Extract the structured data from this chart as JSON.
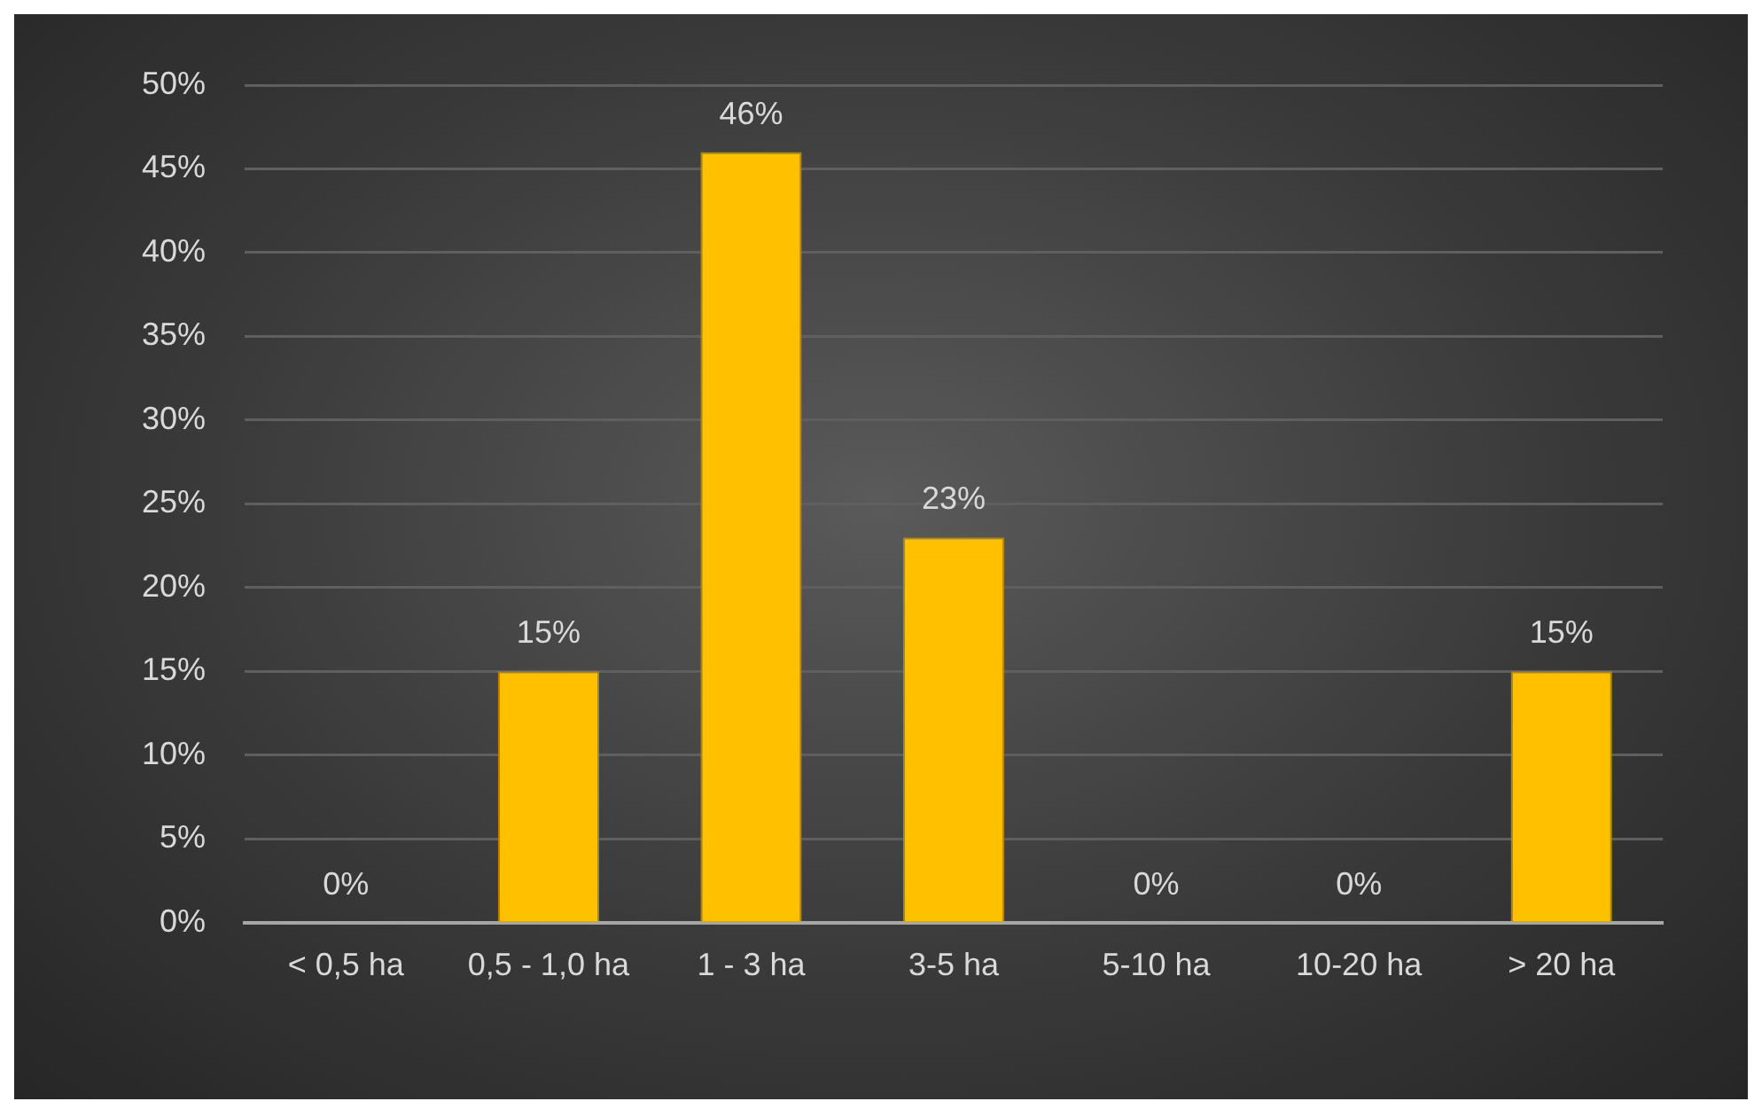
{
  "chart_data": {
    "type": "bar",
    "categories": [
      "< 0,5 ha",
      "0,5 - 1,0 ha",
      "1 - 3 ha",
      "3-5 ha",
      "5-10 ha",
      "10-20 ha",
      "> 20 ha"
    ],
    "values": [
      0,
      15,
      46,
      23,
      0,
      0,
      15
    ],
    "value_labels": [
      "0%",
      "15%",
      "46%",
      "23%",
      "0%",
      "0%",
      "15%"
    ],
    "color": "#ffc000",
    "ylim": [
      0,
      50
    ],
    "yticks": [
      {
        "value": 0,
        "label": "0%"
      },
      {
        "value": 5,
        "label": "5%"
      },
      {
        "value": 10,
        "label": "10%"
      },
      {
        "value": 15,
        "label": "15%"
      },
      {
        "value": 20,
        "label": "20%"
      },
      {
        "value": 25,
        "label": "25%"
      },
      {
        "value": 30,
        "label": "30%"
      },
      {
        "value": 35,
        "label": "35%"
      },
      {
        "value": 40,
        "label": "40%"
      },
      {
        "value": 45,
        "label": "45%"
      },
      {
        "value": 50,
        "label": "50%"
      }
    ],
    "grid": "y",
    "legend": false
  }
}
